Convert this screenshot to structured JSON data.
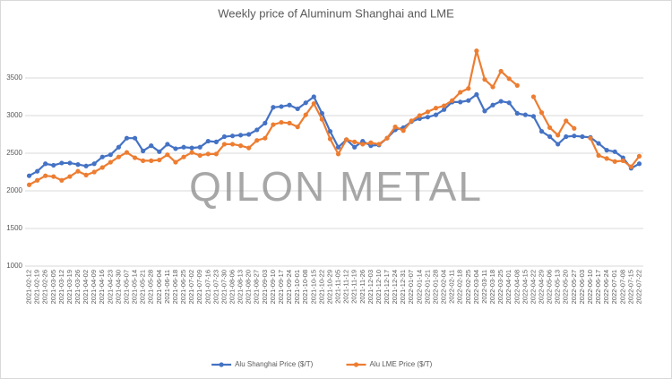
{
  "chart_data": {
    "type": "line",
    "title": "Weekly price of Aluminum Shanghai and LME",
    "watermark": "QILON METAL",
    "categories": [
      "2021-02-12",
      "2021-02-19",
      "2021-02-26",
      "2021-03-05",
      "2021-03-12",
      "2021-03-19",
      "2021-03-26",
      "2021-04-02",
      "2021-04-09",
      "2021-04-16",
      "2021-04-23",
      "2021-04-30",
      "2021-05-07",
      "2021-05-14",
      "2021-05-21",
      "2021-05-28",
      "2021-06-04",
      "2021-06-11",
      "2021-06-18",
      "2021-06-25",
      "2021-07-02",
      "2021-07-09",
      "2021-07-16",
      "2021-07-23",
      "2021-07-30",
      "2021-08-06",
      "2021-08-13",
      "2021-08-20",
      "2021-08-27",
      "2021-09-03",
      "2021-09-10",
      "2021-09-17",
      "2021-09-24",
      "2021-10-01",
      "2021-10-08",
      "2021-10-15",
      "2021-10-22",
      "2021-10-29",
      "2021-11-05",
      "2021-11-12",
      "2021-11-19",
      "2021-11-26",
      "2021-12-03",
      "2021-12-10",
      "2021-12-17",
      "2021-12-24",
      "2021-12-31",
      "2022-01-07",
      "2022-01-14",
      "2022-01-21",
      "2022-01-28",
      "2022-02-04",
      "2022-02-11",
      "2022-02-18",
      "2022-02-25",
      "2022-03-04",
      "2022-03-11",
      "2022-03-18",
      "2022-03-25",
      "2022-04-01",
      "2022-04-08",
      "2022-04-15",
      "2022-04-22",
      "2022-04-29",
      "2022-05-06",
      "2022-05-13",
      "2022-05-20",
      "2022-05-27",
      "2022-06-03",
      "2022-06-10",
      "2022-06-17",
      "2022-06-24",
      "2022-07-01",
      "2022-07-08",
      "2022-07-15",
      "2022-07-22"
    ],
    "series": [
      {
        "name": "Alu Shanghai Price ($/T)",
        "color": "#4472c4",
        "values": [
          2200,
          2260,
          2360,
          2340,
          2370,
          2370,
          2350,
          2330,
          2360,
          2450,
          2480,
          2580,
          2700,
          2700,
          2530,
          2600,
          2520,
          2620,
          2560,
          2580,
          2570,
          2580,
          2660,
          2650,
          2720,
          2730,
          2740,
          2750,
          2810,
          2900,
          3110,
          3120,
          3140,
          3090,
          3170,
          3250,
          3030,
          2790,
          2580,
          2680,
          2580,
          2660,
          2600,
          2610,
          2700,
          2810,
          2840,
          2920,
          2960,
          2980,
          3010,
          3080,
          3180,
          3180,
          3200,
          3280,
          3060,
          3140,
          3190,
          3170,
          3030,
          3010,
          2990,
          2790,
          2720,
          2620,
          2720,
          2730,
          2720,
          2710,
          2630,
          2540,
          2520,
          2440,
          2300,
          2360
        ]
      },
      {
        "name": "Alu LME Price ($/T)",
        "color": "#ed7d31",
        "values": [
          2080,
          2140,
          2200,
          2190,
          2140,
          2190,
          2260,
          2210,
          2250,
          2310,
          2380,
          2450,
          2510,
          2440,
          2400,
          2400,
          2410,
          2480,
          2380,
          2450,
          2510,
          2470,
          2490,
          2490,
          2620,
          2620,
          2600,
          2570,
          2670,
          2700,
          2880,
          2910,
          2900,
          2850,
          3010,
          3160,
          2950,
          2690,
          2490,
          2680,
          2650,
          2620,
          2640,
          2620,
          2700,
          2850,
          2800,
          2930,
          3000,
          3050,
          3100,
          3130,
          3200,
          3310,
          3360,
          3860,
          3480,
          3380,
          3590,
          3490,
          3400,
          null,
          3250,
          3040,
          2840,
          2740,
          2930,
          2830,
          null,
          2700,
          2470,
          2430,
          2390,
          2400,
          2320,
          2460
        ]
      }
    ],
    "ylim": [
      1000,
      4000
    ],
    "yticks": [
      1000,
      1500,
      2000,
      2500,
      3000,
      3500
    ],
    "grid": true,
    "legend": "bottom"
  }
}
